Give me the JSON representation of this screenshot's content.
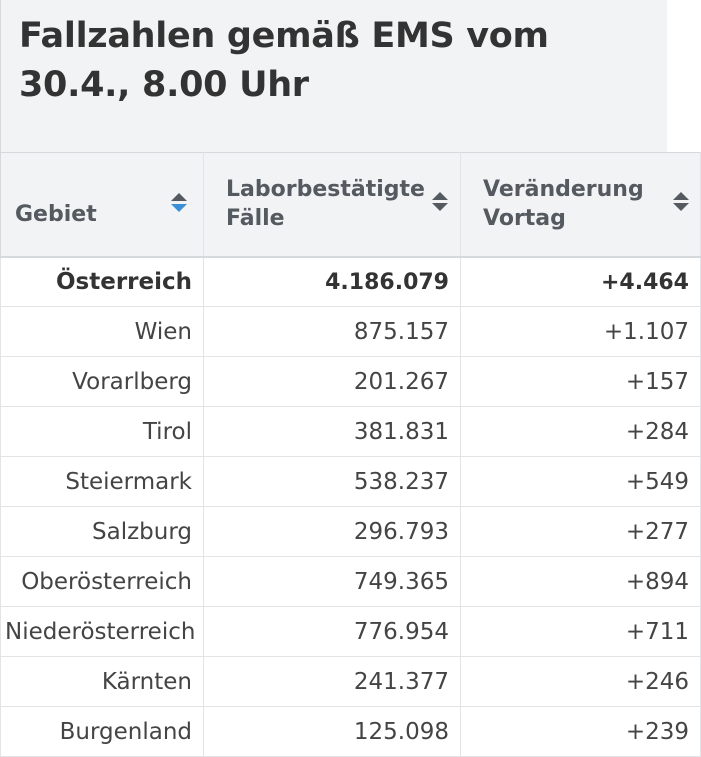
{
  "title": "Fallzahlen gemäß EMS vom 30.4., 8.00 Uhr",
  "columns": [
    {
      "label": "Gebiet"
    },
    {
      "label": "Laborbestätigte\nFälle"
    },
    {
      "label": "Veränderung\nVortag"
    }
  ],
  "sort_state": {
    "column": "Gebiet",
    "direction": "descending"
  },
  "colors": {
    "header_background": "#f1f3f5",
    "sort_active": "#3b8fd6",
    "text": "#333333"
  },
  "rows": [
    {
      "area": "Österreich",
      "cases": "4.186.079",
      "change": "+4.464"
    },
    {
      "area": "Wien",
      "cases": "875.157",
      "change": "+1.107"
    },
    {
      "area": "Vorarlberg",
      "cases": "201.267",
      "change": "+157"
    },
    {
      "area": "Tirol",
      "cases": "381.831",
      "change": "+284"
    },
    {
      "area": "Steiermark",
      "cases": "538.237",
      "change": "+549"
    },
    {
      "area": "Salzburg",
      "cases": "296.793",
      "change": "+277"
    },
    {
      "area": "Oberösterreich",
      "cases": "749.365",
      "change": "+894"
    },
    {
      "area": "Niederösterreich",
      "cases": "776.954",
      "change": "+711"
    },
    {
      "area": "Kärnten",
      "cases": "241.377",
      "change": "+246"
    },
    {
      "area": "Burgenland",
      "cases": "125.098",
      "change": "+239"
    }
  ]
}
